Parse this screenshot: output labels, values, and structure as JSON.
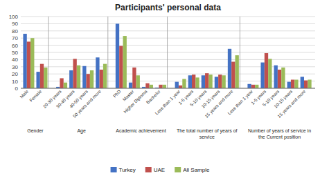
{
  "chart_data": {
    "type": "bar",
    "title": "Participants' personal data",
    "groups": [
      {
        "label": "Gender",
        "categories": [
          "Male",
          "Female"
        ]
      },
      {
        "label": "Age",
        "categories": [
          "20-30 years",
          "30-40 years",
          "40-50 years",
          "50 years and more"
        ]
      },
      {
        "label": "Academic achievement",
        "categories": [
          "PhD",
          "Master",
          "Higher Diploma",
          "Bachelor"
        ]
      },
      {
        "label": "The total number of years of\nservice",
        "categories": [
          "Less than 1 year",
          "1-5 years",
          "5-10 years",
          "10-15 years",
          "15 years and more"
        ]
      },
      {
        "label": "Number of years of service in\nthe Current position",
        "categories": [
          "Less than 1 year",
          "1-5 years",
          "5-10 years",
          "10-15 years",
          "15 years and more"
        ]
      }
    ],
    "series": [
      {
        "name": "Turkey",
        "color": "#4472C4",
        "values": [
          76,
          23,
          2,
          25,
          31,
          43,
          90,
          8,
          2,
          1,
          9,
          18,
          18,
          16,
          55,
          6,
          36,
          32,
          9,
          16
        ]
      },
      {
        "name": "UAE",
        "color": "#C0504D",
        "values": [
          65,
          34,
          14,
          41,
          20,
          26,
          59,
          29,
          7,
          5,
          4,
          19,
          21,
          19,
          37,
          5,
          49,
          26,
          12,
          11
        ]
      },
      {
        "name": "All Sample",
        "color": "#9BBB59",
        "values": [
          70,
          29,
          8,
          32,
          25,
          34,
          73,
          18,
          5,
          5,
          13,
          15,
          19,
          18,
          46,
          5,
          41,
          29,
          12,
          12
        ]
      }
    ],
    "ylim": [
      0,
      100
    ],
    "yticks": [
      0,
      10,
      20,
      30,
      40,
      50,
      60,
      70,
      80,
      90,
      100
    ],
    "grid": true
  }
}
